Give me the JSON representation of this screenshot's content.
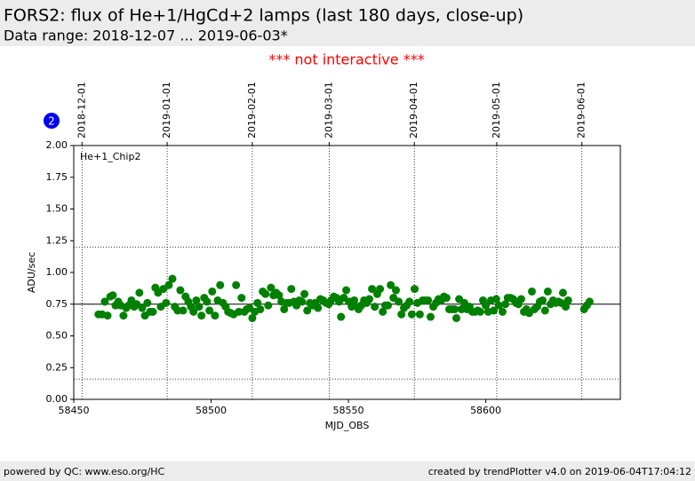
{
  "header": {
    "title": "FORS2: flux of He+1/HgCd+2 lamps (last 180 days, close-up)",
    "subtitle": "Data range: 2018-12-07 ... 2019-06-03*"
  },
  "notice": "*** not interactive ***",
  "badge": "2",
  "footer": {
    "left": "powered by QC: www.eso.org/HC",
    "right": "created by trendPlotter v4.0 on 2019-06-04T17:04:12"
  },
  "chart_data": {
    "type": "scatter",
    "x_label": "MJD_OBS",
    "y_label": "ADU/sec",
    "xlim": [
      58450,
      58649
    ],
    "ylim": [
      0,
      2
    ],
    "xticks": [
      58450,
      58500,
      58550,
      58600
    ],
    "yticks": [
      {
        "value": 0,
        "label": "0.00"
      },
      {
        "value": 0.25,
        "label": "0.25"
      },
      {
        "value": 0.5,
        "label": "0.50"
      },
      {
        "value": 0.75,
        "label": "0.75"
      },
      {
        "value": 1,
        "label": "1.00"
      },
      {
        "value": 1.25,
        "label": "1.25"
      },
      {
        "value": 1.5,
        "label": "1.50"
      },
      {
        "value": 1.75,
        "label": "1.75"
      },
      {
        "value": 2,
        "label": "2.00"
      }
    ],
    "x2ticks": [
      {
        "value": 58453,
        "label": "2018-12-01"
      },
      {
        "value": 58484,
        "label": "2019-01-01"
      },
      {
        "value": 58515,
        "label": "2019-02-01"
      },
      {
        "value": 58543,
        "label": "2019-03-01"
      },
      {
        "value": 58574,
        "label": "2019-04-01"
      },
      {
        "value": 58604,
        "label": "2019-05-01"
      },
      {
        "value": 58635,
        "label": "2019-06-01"
      }
    ],
    "grid": true,
    "reference_line": 0.75,
    "limit_lines": [
      1.2,
      0.16
    ],
    "series": [
      {
        "name": "He+1_Chip2",
        "color": "#008000",
        "x": [
          58459.0,
          58460.3,
          58461.3,
          58462.3,
          58463.3,
          58464.2,
          58465.2,
          58466.2,
          58467.1,
          58468.1,
          58469.1,
          58470.0,
          58471.0,
          58472.0,
          58472.9,
          58473.9,
          58474.9,
          58475.9,
          58476.8,
          58477.8,
          58478.8,
          58479.7,
          58480.7,
          58481.7,
          58482.6,
          58483.6,
          58484.6,
          58485.9,
          58486.8,
          58487.8,
          58488.8,
          58489.8,
          58490.7,
          58491.7,
          58492.7,
          58493.6,
          58494.6,
          58495.6,
          58496.5,
          58497.5,
          58498.5,
          58499.4,
          58500.4,
          58501.4,
          58502.4,
          58503.3,
          58504.3,
          58505.3,
          58506.2,
          58507.2,
          58508.2,
          58509.1,
          58510.1,
          58511.1,
          58512.1,
          58513.0,
          58514.0,
          58515.0,
          58515.9,
          58516.9,
          58517.9,
          58518.8,
          58519.8,
          58520.8,
          58521.8,
          58522.7,
          58523.7,
          58524.7,
          58525.6,
          58526.6,
          58527.6,
          58528.5,
          58529.2,
          58530.2,
          58531.1,
          58532.1,
          58533.1,
          58534.0,
          58535.0,
          58536.0,
          58536.9,
          58537.9,
          58538.9,
          58539.8,
          58540.8,
          58541.8,
          58542.8,
          58543.7,
          58544.7,
          58545.7,
          58546.6,
          58547.3,
          58548.3,
          58549.2,
          58550.2,
          58551.2,
          58552.1,
          58553.1,
          58553.7,
          58554.7,
          58555.7,
          58556.7,
          58557.6,
          58558.6,
          58559.6,
          58560.5,
          58561.5,
          58562.5,
          58563.4,
          58564.4,
          58565.4,
          58566.4,
          58567.3,
          58568.3,
          58569.3,
          58570.2,
          58571.2,
          58572.2,
          58573.1,
          58574.1,
          58575.1,
          58576.0,
          58577.0,
          58578.0,
          58579.0,
          58579.9,
          58580.9,
          58581.9,
          58582.8,
          58583.8,
          58584.8,
          58585.7,
          58586.7,
          58587.7,
          58588.7,
          58589.3,
          58590.3,
          58591.2,
          58592.2,
          58593.2,
          58594.1,
          58595.1,
          58596.1,
          58597.1,
          58598.0,
          58599.0,
          58600.0,
          58600.9,
          58601.9,
          58602.9,
          58603.8,
          58604.8,
          58606.1,
          58607.1,
          58608.0,
          58609.0,
          58610.0,
          58611.0,
          58611.9,
          58612.9,
          58613.9,
          58614.8,
          58615.8,
          58616.8,
          58617.7,
          58618.7,
          58619.7,
          58620.7,
          58621.6,
          58622.6,
          58623.6,
          58624.5,
          58625.5,
          58626.5,
          58627.4,
          58628.1,
          58629.1,
          58630.0,
          58635.8,
          58636.8,
          58637.8
        ],
        "values": [
          0.67,
          0.67,
          0.77,
          0.66,
          0.81,
          0.82,
          0.74,
          0.77,
          0.74,
          0.66,
          0.72,
          0.74,
          0.78,
          0.73,
          0.75,
          0.84,
          0.72,
          0.66,
          0.76,
          0.69,
          0.69,
          0.88,
          0.84,
          0.73,
          0.87,
          0.76,
          0.9,
          0.95,
          0.73,
          0.7,
          0.86,
          0.7,
          0.81,
          0.77,
          0.73,
          0.69,
          0.78,
          0.73,
          0.66,
          0.8,
          0.77,
          0.7,
          0.85,
          0.66,
          0.78,
          0.9,
          0.76,
          0.73,
          0.69,
          0.68,
          0.67,
          0.9,
          0.69,
          0.8,
          0.69,
          0.71,
          0.72,
          0.64,
          0.69,
          0.76,
          0.71,
          0.85,
          0.83,
          0.74,
          0.88,
          0.82,
          0.84,
          0.82,
          0.77,
          0.71,
          0.76,
          0.76,
          0.87,
          0.77,
          0.74,
          0.78,
          0.77,
          0.83,
          0.7,
          0.76,
          0.74,
          0.76,
          0.72,
          0.79,
          0.78,
          0.76,
          0.75,
          0.78,
          0.81,
          0.8,
          0.77,
          0.65,
          0.8,
          0.86,
          0.77,
          0.73,
          0.78,
          0.73,
          0.71,
          0.74,
          0.78,
          0.76,
          0.79,
          0.87,
          0.73,
          0.83,
          0.87,
          0.69,
          0.74,
          0.74,
          0.9,
          0.8,
          0.86,
          0.77,
          0.67,
          0.72,
          0.74,
          0.77,
          0.67,
          0.87,
          0.76,
          0.67,
          0.78,
          0.78,
          0.78,
          0.65,
          0.73,
          0.76,
          0.79,
          0.78,
          0.81,
          0.8,
          0.71,
          0.71,
          0.71,
          0.64,
          0.79,
          0.71,
          0.76,
          0.71,
          0.73,
          0.69,
          0.69,
          0.7,
          0.69,
          0.78,
          0.74,
          0.69,
          0.78,
          0.7,
          0.79,
          0.74,
          0.69,
          0.75,
          0.8,
          0.8,
          0.79,
          0.76,
          0.75,
          0.79,
          0.69,
          0.71,
          0.68,
          0.85,
          0.71,
          0.73,
          0.77,
          0.78,
          0.7,
          0.85,
          0.75,
          0.78,
          0.76,
          0.77,
          0.76,
          0.84,
          0.73,
          0.78,
          0.71,
          0.74,
          0.77
        ]
      }
    ]
  }
}
